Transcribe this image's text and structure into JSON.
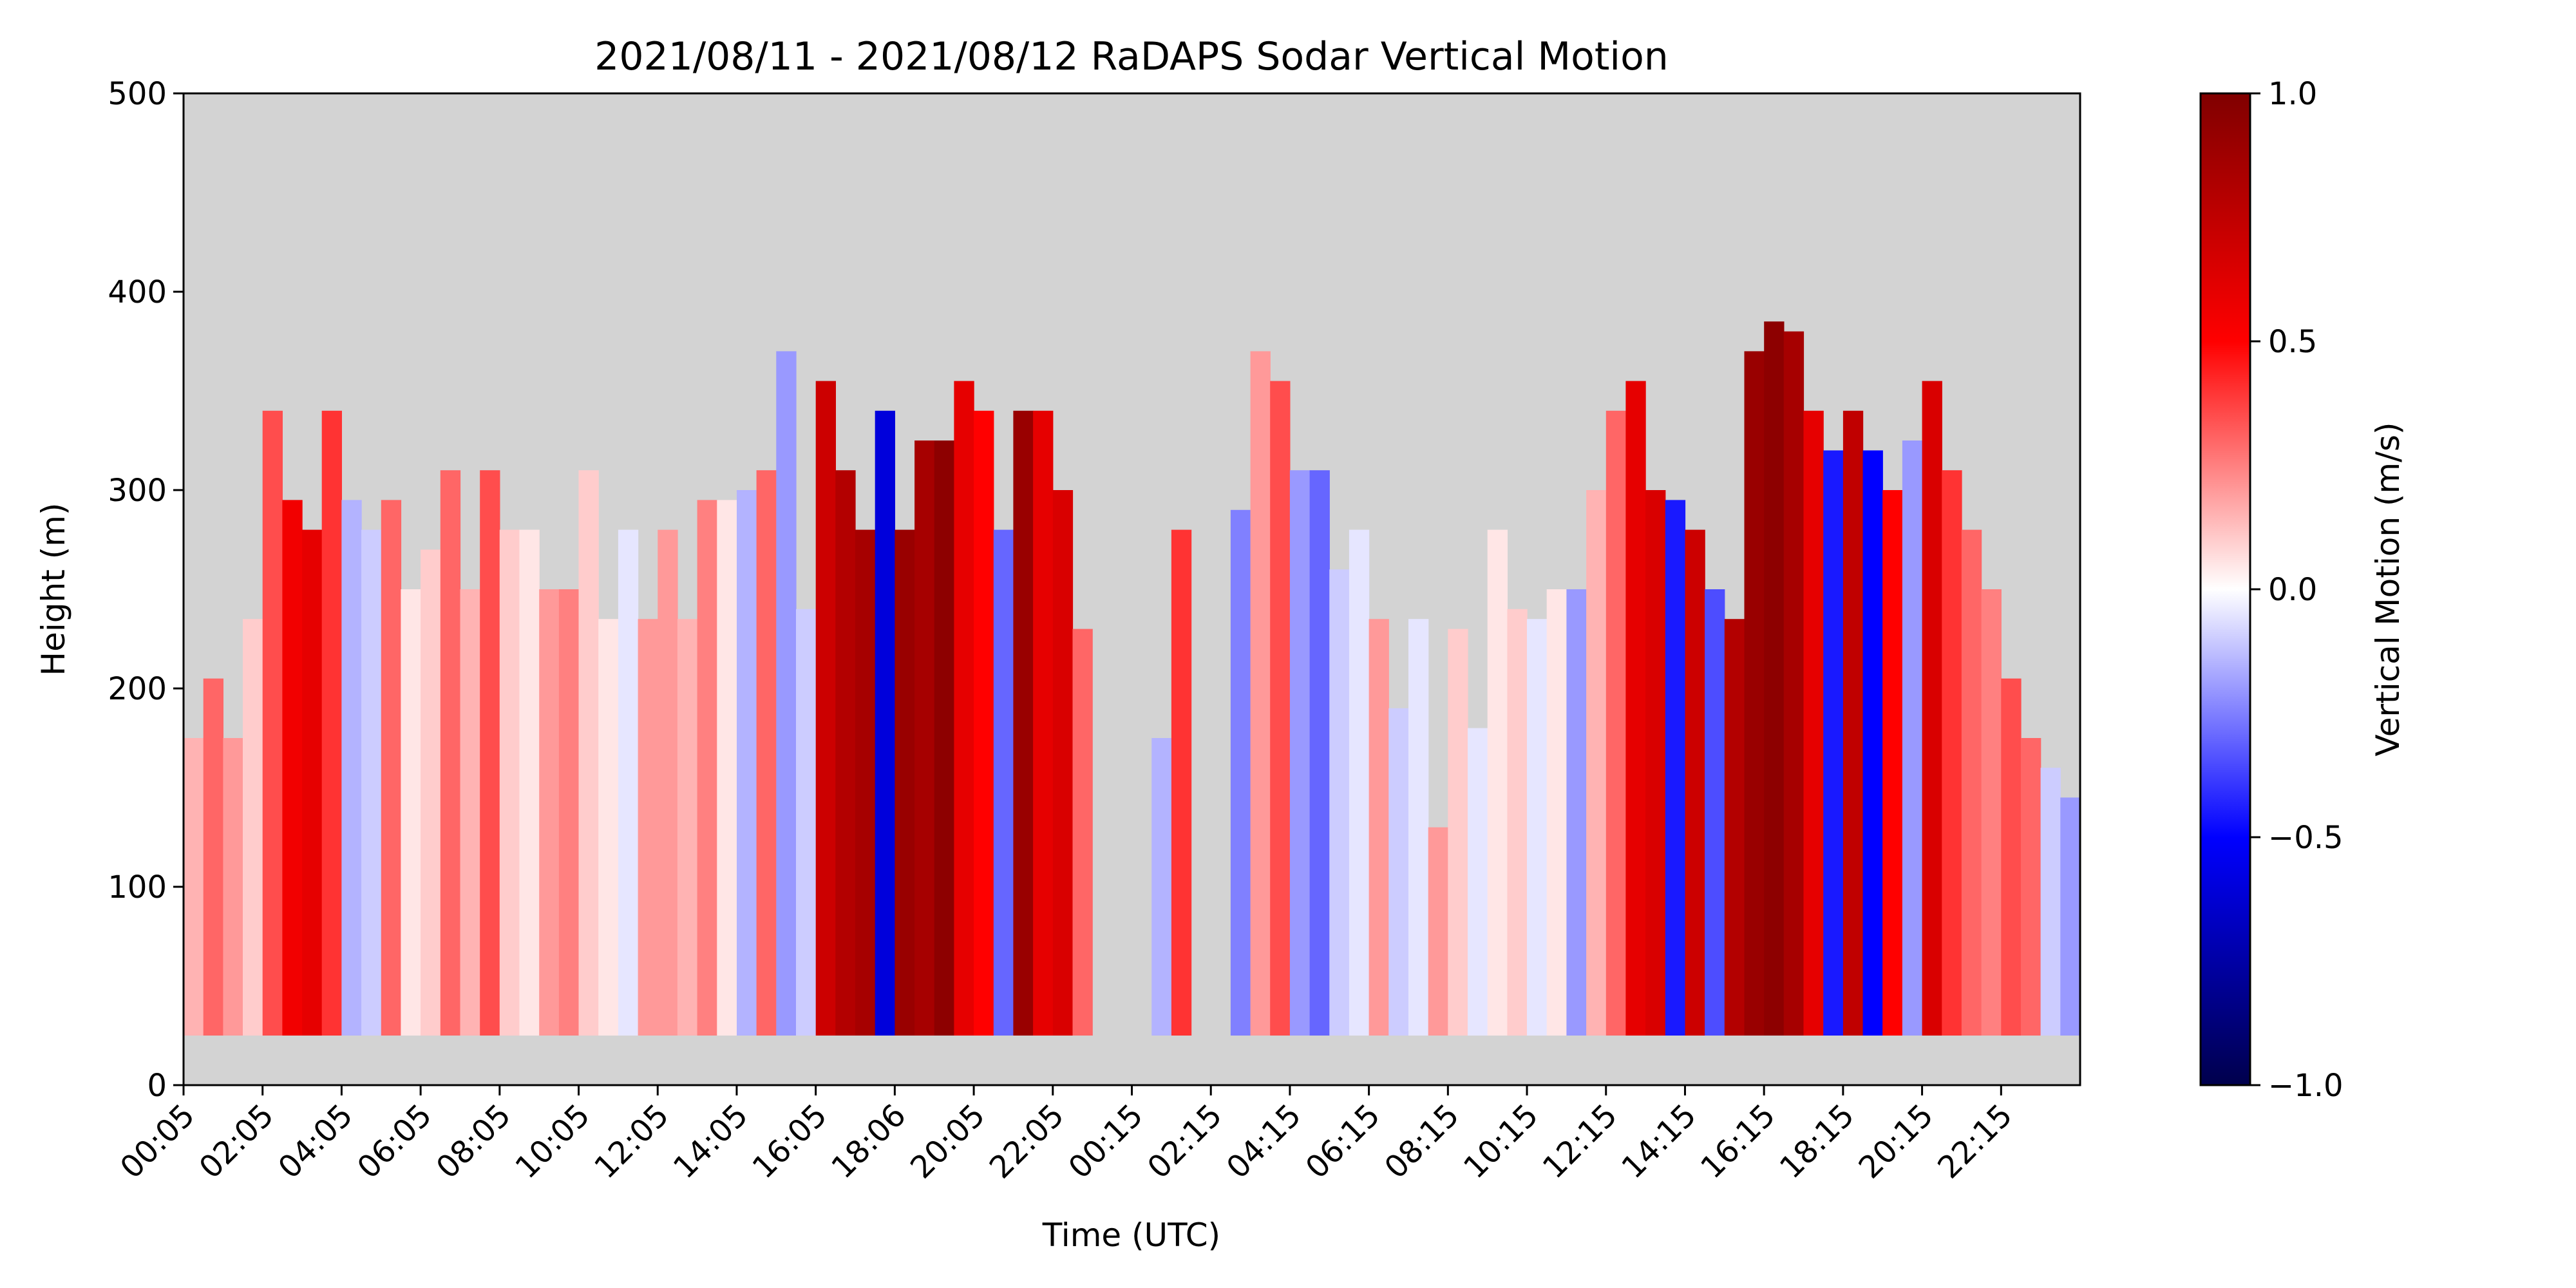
{
  "chart_data": {
    "type": "heatmap",
    "title": "2021/08/11 - 2021/08/12 RaDAPS Sodar Vertical Motion",
    "xlabel": "Time (UTC)",
    "ylabel": "Height (m)",
    "ylim": [
      0,
      500
    ],
    "y_ticks": [
      0,
      100,
      200,
      300,
      400,
      500
    ],
    "x_ticks": [
      "00:05",
      "02:05",
      "04:05",
      "06:05",
      "08:05",
      "10:05",
      "12:05",
      "14:05",
      "16:05",
      "18:06",
      "20:05",
      "22:05",
      "00:15",
      "02:15",
      "04:15",
      "06:15",
      "08:15",
      "10:15",
      "12:15",
      "14:15",
      "16:15",
      "18:15",
      "20:15",
      "22:15"
    ],
    "x_range_hours": [
      0,
      48
    ],
    "missing_data_color": "#d3d3d3",
    "colorbar": {
      "label": "Vertical Motion (m/s)",
      "range": [
        -1.0,
        1.0
      ],
      "ticks": [
        1.0,
        0.5,
        0.0,
        -0.5,
        -1.0
      ],
      "tick_labels": [
        "1.0",
        "0.5",
        "0.0",
        "−0.5",
        "−1.0"
      ],
      "colormap": "seismic",
      "colors": [
        "#00004c",
        "#0000ff",
        "#ffffff",
        "#ff0000",
        "#800000"
      ]
    },
    "data_bottom_height_m": 25,
    "gap_hours": [
      22.8,
      25.6
    ],
    "notes_not_rendered": [],
    "profiles": [
      {
        "t": 0.0,
        "top": 175,
        "w": 0.15
      },
      {
        "t": 0.5,
        "top": 205,
        "w": 0.3
      },
      {
        "t": 1.0,
        "top": 175,
        "w": 0.2
      },
      {
        "t": 1.5,
        "top": 235,
        "w": 0.1
      },
      {
        "t": 2.0,
        "top": 340,
        "w": 0.35
      },
      {
        "t": 2.5,
        "top": 295,
        "w": 0.55
      },
      {
        "t": 3.0,
        "top": 280,
        "w": 0.6
      },
      {
        "t": 3.5,
        "top": 340,
        "w": 0.4
      },
      {
        "t": 4.0,
        "top": 295,
        "w": -0.15
      },
      {
        "t": 4.5,
        "top": 280,
        "w": -0.1
      },
      {
        "t": 5.0,
        "top": 295,
        "w": 0.3
      },
      {
        "t": 5.5,
        "top": 250,
        "w": 0.05
      },
      {
        "t": 6.0,
        "top": 270,
        "w": 0.1
      },
      {
        "t": 6.5,
        "top": 310,
        "w": 0.3
      },
      {
        "t": 7.0,
        "top": 250,
        "w": 0.15
      },
      {
        "t": 7.5,
        "top": 310,
        "w": 0.35
      },
      {
        "t": 8.0,
        "top": 280,
        "w": 0.1
      },
      {
        "t": 8.5,
        "top": 280,
        "w": 0.05
      },
      {
        "t": 9.0,
        "top": 250,
        "w": 0.2
      },
      {
        "t": 9.5,
        "top": 250,
        "w": 0.25
      },
      {
        "t": 10.0,
        "top": 310,
        "w": 0.1
      },
      {
        "t": 10.5,
        "top": 235,
        "w": 0.05
      },
      {
        "t": 11.0,
        "top": 280,
        "w": -0.05
      },
      {
        "t": 11.5,
        "top": 235,
        "w": 0.2
      },
      {
        "t": 12.0,
        "top": 280,
        "w": 0.2
      },
      {
        "t": 12.5,
        "top": 235,
        "w": 0.15
      },
      {
        "t": 13.0,
        "top": 295,
        "w": 0.25
      },
      {
        "t": 13.5,
        "top": 295,
        "w": 0.05
      },
      {
        "t": 14.0,
        "top": 300,
        "w": -0.15
      },
      {
        "t": 14.5,
        "top": 310,
        "w": 0.3
      },
      {
        "t": 15.0,
        "top": 370,
        "w": -0.2
      },
      {
        "t": 15.5,
        "top": 240,
        "w": -0.1
      },
      {
        "t": 16.0,
        "top": 355,
        "w": 0.7
      },
      {
        "t": 16.5,
        "top": 310,
        "w": 0.8
      },
      {
        "t": 17.0,
        "top": 280,
        "w": 0.85
      },
      {
        "t": 17.5,
        "top": 340,
        "w": -0.6
      },
      {
        "t": 18.0,
        "top": 280,
        "w": 0.9
      },
      {
        "t": 18.5,
        "top": 325,
        "w": 0.85
      },
      {
        "t": 19.0,
        "top": 325,
        "w": 0.95
      },
      {
        "t": 19.5,
        "top": 355,
        "w": 0.6
      },
      {
        "t": 20.0,
        "top": 340,
        "w": 0.5
      },
      {
        "t": 20.5,
        "top": 280,
        "w": -0.3
      },
      {
        "t": 21.0,
        "top": 340,
        "w": 0.9
      },
      {
        "t": 21.5,
        "top": 340,
        "w": 0.6
      },
      {
        "t": 22.0,
        "top": 300,
        "w": 0.65
      },
      {
        "t": 22.5,
        "top": 230,
        "w": 0.3
      },
      {
        "t": 24.5,
        "top": 175,
        "w": -0.15
      },
      {
        "t": 25.0,
        "top": 280,
        "w": 0.4
      },
      {
        "t": 26.5,
        "top": 290,
        "w": -0.25
      },
      {
        "t": 27.0,
        "top": 370,
        "w": 0.2
      },
      {
        "t": 27.5,
        "top": 355,
        "w": 0.35
      },
      {
        "t": 28.0,
        "top": 310,
        "w": -0.2
      },
      {
        "t": 28.5,
        "top": 310,
        "w": -0.3
      },
      {
        "t": 29.0,
        "top": 260,
        "w": -0.1
      },
      {
        "t": 29.5,
        "top": 280,
        "w": -0.05
      },
      {
        "t": 30.0,
        "top": 235,
        "w": 0.2
      },
      {
        "t": 30.5,
        "top": 190,
        "w": -0.1
      },
      {
        "t": 31.0,
        "top": 235,
        "w": -0.05
      },
      {
        "t": 31.5,
        "top": 130,
        "w": 0.2
      },
      {
        "t": 32.0,
        "top": 230,
        "w": 0.1
      },
      {
        "t": 32.5,
        "top": 180,
        "w": -0.05
      },
      {
        "t": 33.0,
        "top": 280,
        "w": 0.05
      },
      {
        "t": 33.5,
        "top": 240,
        "w": 0.1
      },
      {
        "t": 34.0,
        "top": 235,
        "w": -0.05
      },
      {
        "t": 34.5,
        "top": 250,
        "w": 0.05
      },
      {
        "t": 35.0,
        "top": 250,
        "w": -0.2
      },
      {
        "t": 35.5,
        "top": 300,
        "w": 0.15
      },
      {
        "t": 36.0,
        "top": 340,
        "w": 0.3
      },
      {
        "t": 36.5,
        "top": 355,
        "w": 0.6
      },
      {
        "t": 37.0,
        "top": 300,
        "w": 0.65
      },
      {
        "t": 37.5,
        "top": 295,
        "w": -0.45
      },
      {
        "t": 38.0,
        "top": 280,
        "w": 0.7
      },
      {
        "t": 38.5,
        "top": 250,
        "w": -0.35
      },
      {
        "t": 39.0,
        "top": 235,
        "w": 0.8
      },
      {
        "t": 39.5,
        "top": 370,
        "w": 0.9
      },
      {
        "t": 40.0,
        "top": 385,
        "w": 0.95
      },
      {
        "t": 40.5,
        "top": 380,
        "w": 0.85
      },
      {
        "t": 41.0,
        "top": 340,
        "w": 0.6
      },
      {
        "t": 41.5,
        "top": 320,
        "w": -0.45
      },
      {
        "t": 42.0,
        "top": 340,
        "w": 0.75
      },
      {
        "t": 42.5,
        "top": 320,
        "w": -0.5
      },
      {
        "t": 43.0,
        "top": 300,
        "w": 0.5
      },
      {
        "t": 43.5,
        "top": 325,
        "w": -0.2
      },
      {
        "t": 44.0,
        "top": 355,
        "w": 0.65
      },
      {
        "t": 44.5,
        "top": 310,
        "w": 0.4
      },
      {
        "t": 45.0,
        "top": 280,
        "w": 0.3
      },
      {
        "t": 45.5,
        "top": 250,
        "w": 0.25
      },
      {
        "t": 46.0,
        "top": 205,
        "w": 0.35
      },
      {
        "t": 46.5,
        "top": 175,
        "w": 0.3
      },
      {
        "t": 47.0,
        "top": 160,
        "w": -0.1
      },
      {
        "t": 47.5,
        "top": 145,
        "w": -0.2
      }
    ]
  }
}
